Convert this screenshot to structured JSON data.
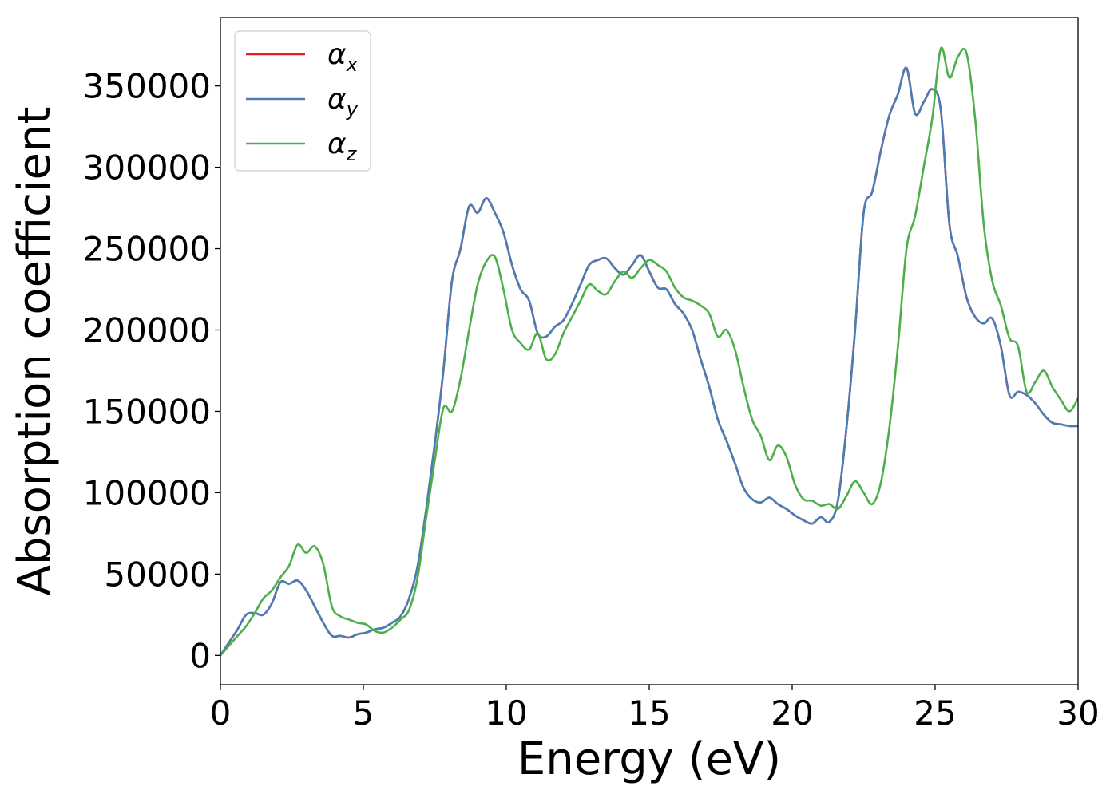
{
  "chart_data": {
    "type": "line",
    "title": "",
    "xlabel": "Energy (eV)",
    "ylabel": "Absorption coefficient",
    "xlim": [
      0,
      30
    ],
    "ylim": [
      -18000,
      392000
    ],
    "xticks": [
      0,
      5,
      10,
      15,
      20,
      25,
      30
    ],
    "yticks": [
      0,
      50000,
      100000,
      150000,
      200000,
      250000,
      300000,
      350000
    ],
    "grid": false,
    "legend_position": "top-left",
    "series": [
      {
        "name": "α_x",
        "label_main": "α",
        "label_sub": "x",
        "color": "#e41a1c",
        "x": [
          0,
          0.3,
          0.6,
          0.9,
          1.2,
          1.5,
          1.8,
          2.1,
          2.4,
          2.7,
          3.0,
          3.3,
          3.6,
          3.9,
          4.2,
          4.5,
          4.8,
          5.1,
          5.4,
          5.7,
          6.0,
          6.3,
          6.6,
          6.9,
          7.2,
          7.5,
          7.8,
          8.1,
          8.4,
          8.7,
          9.0,
          9.3,
          9.6,
          9.9,
          10.2,
          10.5,
          10.8,
          11.1,
          11.4,
          11.7,
          12.0,
          12.3,
          12.6,
          12.9,
          13.2,
          13.5,
          13.8,
          14.1,
          14.4,
          14.7,
          15.0,
          15.3,
          15.6,
          15.9,
          16.2,
          16.5,
          16.8,
          17.1,
          17.4,
          17.7,
          18.0,
          18.3,
          18.6,
          18.9,
          19.2,
          19.5,
          19.8,
          20.1,
          20.4,
          20.7,
          21.0,
          21.3,
          21.6,
          21.9,
          22.2,
          22.5,
          22.8,
          23.1,
          23.4,
          23.7,
          24.0,
          24.3,
          24.6,
          24.9,
          25.2,
          25.5,
          25.8,
          26.1,
          26.4,
          26.7,
          27.0,
          27.3,
          27.6,
          27.9,
          28.2,
          28.5,
          28.8,
          29.1,
          29.4,
          29.7,
          30.0
        ],
        "y": [
          0,
          8000,
          16000,
          25000,
          26000,
          25000,
          32000,
          45000,
          44000,
          46000,
          40000,
          30000,
          20000,
          12000,
          12000,
          11000,
          13000,
          14000,
          16000,
          17000,
          20000,
          24000,
          35000,
          55000,
          90000,
          130000,
          175000,
          230000,
          250000,
          276000,
          272000,
          281000,
          272000,
          260000,
          240000,
          225000,
          218000,
          198000,
          196000,
          202000,
          206000,
          216000,
          228000,
          240000,
          243000,
          244000,
          238000,
          234000,
          240000,
          246000,
          236000,
          226000,
          225000,
          216000,
          210000,
          200000,
          182000,
          165000,
          145000,
          132000,
          118000,
          103000,
          96000,
          94000,
          97000,
          93000,
          90000,
          86000,
          83000,
          81000,
          85000,
          82000,
          95000,
          140000,
          200000,
          272000,
          285000,
          310000,
          332000,
          345000,
          361000,
          333000,
          340000,
          348000,
          335000,
          265000,
          245000,
          220000,
          208000,
          204000,
          207000,
          190000,
          160000,
          162000,
          160000,
          155000,
          148000,
          143000,
          142000,
          141000,
          141000
        ]
      },
      {
        "name": "α_y",
        "label_main": "α",
        "label_sub": "y",
        "color": "#4a7db5",
        "x": [
          0,
          0.3,
          0.6,
          0.9,
          1.2,
          1.5,
          1.8,
          2.1,
          2.4,
          2.7,
          3.0,
          3.3,
          3.6,
          3.9,
          4.2,
          4.5,
          4.8,
          5.1,
          5.4,
          5.7,
          6.0,
          6.3,
          6.6,
          6.9,
          7.2,
          7.5,
          7.8,
          8.1,
          8.4,
          8.7,
          9.0,
          9.3,
          9.6,
          9.9,
          10.2,
          10.5,
          10.8,
          11.1,
          11.4,
          11.7,
          12.0,
          12.3,
          12.6,
          12.9,
          13.2,
          13.5,
          13.8,
          14.1,
          14.4,
          14.7,
          15.0,
          15.3,
          15.6,
          15.9,
          16.2,
          16.5,
          16.8,
          17.1,
          17.4,
          17.7,
          18.0,
          18.3,
          18.6,
          18.9,
          19.2,
          19.5,
          19.8,
          20.1,
          20.4,
          20.7,
          21.0,
          21.3,
          21.6,
          21.9,
          22.2,
          22.5,
          22.8,
          23.1,
          23.4,
          23.7,
          24.0,
          24.3,
          24.6,
          24.9,
          25.2,
          25.5,
          25.8,
          26.1,
          26.4,
          26.7,
          27.0,
          27.3,
          27.6,
          27.9,
          28.2,
          28.5,
          28.8,
          29.1,
          29.4,
          29.7,
          30.0
        ],
        "y": [
          0,
          8000,
          16000,
          25000,
          26000,
          25000,
          32000,
          45000,
          44000,
          46000,
          40000,
          30000,
          20000,
          12000,
          12000,
          11000,
          13000,
          14000,
          16000,
          17000,
          20000,
          24000,
          35000,
          55000,
          90000,
          130000,
          175000,
          230000,
          250000,
          276000,
          272000,
          281000,
          272000,
          260000,
          240000,
          225000,
          218000,
          198000,
          196000,
          202000,
          206000,
          216000,
          228000,
          240000,
          243000,
          244000,
          238000,
          234000,
          240000,
          246000,
          236000,
          226000,
          225000,
          216000,
          210000,
          200000,
          182000,
          165000,
          145000,
          132000,
          118000,
          103000,
          96000,
          94000,
          97000,
          93000,
          90000,
          86000,
          83000,
          81000,
          85000,
          82000,
          95000,
          140000,
          200000,
          272000,
          285000,
          310000,
          332000,
          345000,
          361000,
          333000,
          340000,
          348000,
          335000,
          265000,
          245000,
          220000,
          208000,
          204000,
          207000,
          190000,
          160000,
          162000,
          160000,
          155000,
          148000,
          143000,
          142000,
          141000,
          141000
        ]
      },
      {
        "name": "α_z",
        "label_main": "α",
        "label_sub": "z",
        "color": "#4daf4a",
        "x": [
          0,
          0.3,
          0.6,
          0.9,
          1.2,
          1.5,
          1.8,
          2.1,
          2.4,
          2.7,
          3.0,
          3.3,
          3.6,
          3.9,
          4.2,
          4.5,
          4.8,
          5.1,
          5.4,
          5.7,
          6.0,
          6.3,
          6.6,
          6.9,
          7.2,
          7.5,
          7.8,
          8.1,
          8.4,
          8.7,
          9.0,
          9.3,
          9.6,
          9.9,
          10.2,
          10.5,
          10.8,
          11.1,
          11.4,
          11.7,
          12.0,
          12.3,
          12.6,
          12.9,
          13.2,
          13.5,
          13.8,
          14.1,
          14.4,
          14.7,
          15.0,
          15.3,
          15.6,
          15.9,
          16.2,
          16.5,
          16.8,
          17.1,
          17.4,
          17.7,
          18.0,
          18.3,
          18.6,
          18.9,
          19.2,
          19.5,
          19.8,
          20.1,
          20.4,
          20.7,
          21.0,
          21.3,
          21.6,
          21.9,
          22.2,
          22.5,
          22.8,
          23.1,
          23.4,
          23.7,
          24.0,
          24.3,
          24.6,
          24.9,
          25.2,
          25.5,
          25.8,
          26.1,
          26.4,
          26.7,
          27.0,
          27.3,
          27.6,
          27.9,
          28.2,
          28.5,
          28.8,
          29.1,
          29.4,
          29.7,
          30.0
        ],
        "y": [
          0,
          6000,
          12000,
          18000,
          26000,
          35000,
          40000,
          48000,
          55000,
          68000,
          63000,
          67000,
          56000,
          30000,
          24000,
          22000,
          20000,
          19000,
          15000,
          14000,
          17000,
          22000,
          28000,
          48000,
          85000,
          120000,
          152000,
          150000,
          170000,
          200000,
          228000,
          242000,
          245000,
          225000,
          200000,
          192000,
          188000,
          198000,
          182000,
          185000,
          198000,
          208000,
          218000,
          228000,
          224000,
          222000,
          230000,
          236000,
          232000,
          238000,
          243000,
          240000,
          236000,
          226000,
          220000,
          218000,
          215000,
          210000,
          196000,
          200000,
          188000,
          165000,
          145000,
          135000,
          120000,
          129000,
          122000,
          105000,
          96000,
          95000,
          92000,
          93000,
          90000,
          98000,
          107000,
          100000,
          93000,
          106000,
          140000,
          190000,
          250000,
          270000,
          300000,
          330000,
          373000,
          355000,
          368000,
          370000,
          330000,
          265000,
          230000,
          215000,
          195000,
          190000,
          162000,
          168000,
          175000,
          165000,
          157000,
          150000,
          158000
        ]
      }
    ]
  }
}
